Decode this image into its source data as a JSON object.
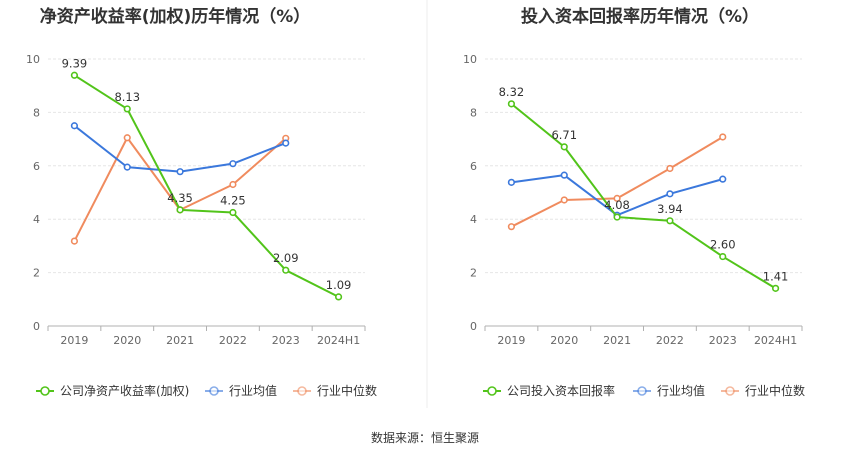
{
  "source_label": "数据来源：恒生聚源",
  "colors": {
    "company": "#52c41a",
    "industry_avg": "#3b78dc",
    "industry_median": "#f08b5e",
    "grid": "#e6e6e6",
    "axis": "#b0b0b0"
  },
  "chart_data": [
    {
      "type": "line",
      "title": "净资产收益率(加权)历年情况（%）",
      "categories": [
        "2019",
        "2020",
        "2021",
        "2022",
        "2023",
        "2024H1"
      ],
      "ylim": [
        0,
        10
      ],
      "yticks": [
        0,
        2,
        4,
        6,
        8,
        10
      ],
      "grid": true,
      "legend_position": "bottom",
      "series": [
        {
          "name": "公司净资产收益率(加权)",
          "values": [
            9.39,
            8.13,
            4.35,
            4.25,
            2.09,
            1.09
          ],
          "labels": [
            "9.39",
            "8.13",
            "4.35",
            "4.25",
            "2.09",
            "1.09"
          ]
        },
        {
          "name": "行业均值",
          "values": [
            7.5,
            5.95,
            5.78,
            6.08,
            6.85,
            null
          ]
        },
        {
          "name": "行业中位数",
          "values": [
            3.18,
            7.05,
            4.35,
            5.3,
            7.03,
            null
          ]
        }
      ]
    },
    {
      "type": "line",
      "title": "投入资本回报率历年情况（%）",
      "categories": [
        "2019",
        "2020",
        "2021",
        "2022",
        "2023",
        "2024H1"
      ],
      "ylim": [
        0,
        10
      ],
      "yticks": [
        0,
        2,
        4,
        6,
        8,
        10
      ],
      "grid": true,
      "legend_position": "bottom",
      "series": [
        {
          "name": "公司投入资本回报率",
          "values": [
            8.32,
            6.71,
            4.08,
            3.94,
            2.6,
            1.41
          ],
          "labels": [
            "8.32",
            "6.71",
            "4.08",
            "3.94",
            "2.60",
            "1.41"
          ]
        },
        {
          "name": "行业均值",
          "values": [
            5.38,
            5.65,
            4.15,
            4.95,
            5.5,
            null
          ]
        },
        {
          "name": "行业中位数",
          "values": [
            3.72,
            4.72,
            4.78,
            5.9,
            7.08,
            null
          ]
        }
      ]
    }
  ]
}
